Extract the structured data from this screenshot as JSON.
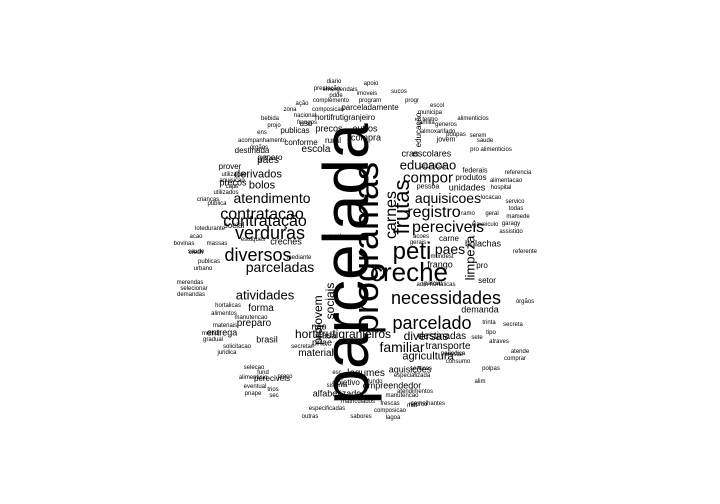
{
  "words": [
    {
      "text": "parcelada",
      "rot": -90
    },
    {
      "text": "programas",
      "rot": -90
    },
    {
      "text": "creche",
      "rot": 0
    },
    {
      "text": "peti",
      "rot": 0
    },
    {
      "text": "necessidades",
      "rot": 0
    },
    {
      "text": "parcelado",
      "rot": 0
    },
    {
      "text": "frutas",
      "rot": -90
    },
    {
      "text": "carnes",
      "rot": -90
    },
    {
      "text": "verduras",
      "rot": 0
    },
    {
      "text": "diversos",
      "rot": 0
    },
    {
      "text": "contratacao",
      "rot": 0
    },
    {
      "text": "contratação",
      "rot": 0
    },
    {
      "text": "parceladas",
      "rot": 0
    },
    {
      "text": "atendimento",
      "rot": 0
    },
    {
      "text": "registro",
      "rot": 0
    },
    {
      "text": "pereciveis",
      "rot": 0
    },
    {
      "text": "compor",
      "rot": 0
    },
    {
      "text": "aquisicoes",
      "rot": 0
    },
    {
      "text": "atividades",
      "rot": 0
    },
    {
      "text": "familiar",
      "rot": 0
    },
    {
      "text": "hortifrutigranjeiros",
      "rot": 0
    },
    {
      "text": "diversas",
      "rot": 0
    },
    {
      "text": "paes",
      "rot": 0
    },
    {
      "text": "educacao",
      "rot": 0
    },
    {
      "text": "limpeza",
      "rot": -90
    },
    {
      "text": "sociais",
      "rot": -90
    },
    {
      "text": "projovem",
      "rot": -90
    },
    {
      "text": "bolos",
      "rot": 0
    },
    {
      "text": "derivados",
      "rot": 0
    },
    {
      "text": "agricultura",
      "rot": 0
    },
    {
      "text": "destinadas",
      "rot": 0
    },
    {
      "text": "forma",
      "rot": 0
    },
    {
      "text": "preparo",
      "rot": 0
    },
    {
      "text": "material",
      "rot": 0
    },
    {
      "text": "transporte",
      "rot": 0
    },
    {
      "text": "pães",
      "rot": 0
    },
    {
      "text": "escola",
      "rot": 0
    },
    {
      "text": "escolares",
      "rot": 0
    },
    {
      "text": "cras",
      "rot": 0
    },
    {
      "text": "precos",
      "rot": 0
    },
    {
      "text": "preços",
      "rot": 0
    },
    {
      "text": "creches",
      "rot": 0
    },
    {
      "text": "casa",
      "rot": 0
    },
    {
      "text": "nao",
      "rot": 0
    },
    {
      "text": "pnae",
      "rot": 0
    },
    {
      "text": "legumes",
      "rot": 0
    },
    {
      "text": "alfabetizado",
      "rot": 0
    },
    {
      "text": "empreendedor",
      "rot": 0
    },
    {
      "text": "aquisições",
      "rot": 0
    },
    {
      "text": "demanda",
      "rot": 0
    },
    {
      "text": "unidades",
      "rot": 0
    },
    {
      "text": "frango",
      "rot": 0
    },
    {
      "text": "bolachas",
      "rot": 0
    },
    {
      "text": "carne",
      "rot": 0
    },
    {
      "text": "setor",
      "rot": 0
    },
    {
      "text": "pro",
      "rot": 0
    },
    {
      "text": "prover",
      "rot": 0
    },
    {
      "text": "social",
      "rot": 0
    },
    {
      "text": "entrega",
      "rot": 0
    },
    {
      "text": "brasil",
      "rot": 0
    },
    {
      "text": "destinada",
      "rot": 0
    },
    {
      "text": "conforme",
      "rot": 0
    },
    {
      "text": "genero",
      "rot": 0
    },
    {
      "text": "compra",
      "rot": 0
    },
    {
      "text": "outros",
      "rot": 0
    },
    {
      "text": "rural",
      "rot": 0
    },
    {
      "text": "publicas",
      "rot": 0
    },
    {
      "text": "uso",
      "rot": 0
    },
    {
      "text": "hortifrutigranjeiro",
      "rot": 0
    },
    {
      "text": "parceladamente",
      "rot": 0
    },
    {
      "text": "pereciveis",
      "rot": 0
    },
    {
      "text": "educação",
      "rot": -90
    },
    {
      "text": "jovem",
      "rot": 0
    },
    {
      "text": "produtos",
      "rot": 0
    },
    {
      "text": "federais",
      "rot": 0
    },
    {
      "text": "pessoa",
      "rot": 0
    },
    {
      "text": "hospital",
      "rot": 0
    },
    {
      "text": "locacao",
      "rot": 0
    },
    {
      "text": "geral",
      "rot": 0
    },
    {
      "text": "ejaveiculo",
      "rot": 0
    },
    {
      "text": "mundest",
      "rot": 0
    },
    {
      "text": "adm hortalicas",
      "rot": 0
    },
    {
      "text": "prestar",
      "rot": 0
    },
    {
      "text": "consumo",
      "rot": 0
    },
    {
      "text": "especializada",
      "rot": 0
    },
    {
      "text": "servicos",
      "rot": 0
    },
    {
      "text": "objetivo",
      "rot": 0
    },
    {
      "text": "sistema",
      "rot": 0
    },
    {
      "text": "fundo",
      "rot": 0
    },
    {
      "text": "manutencao",
      "rot": 0
    },
    {
      "text": "matriculados",
      "rot": 0
    },
    {
      "text": "frescas",
      "rot": 0
    },
    {
      "text": "estoques",
      "rot": 0
    },
    {
      "text": "lotedurante",
      "rot": 0
    },
    {
      "text": "acao",
      "rot": 0
    },
    {
      "text": "bovinas",
      "rot": 0
    },
    {
      "text": "merendas",
      "rot": 0
    },
    {
      "text": "selecionar",
      "rot": 0
    },
    {
      "text": "demandas",
      "rot": 0
    },
    {
      "text": "hortalicas",
      "rot": 0
    },
    {
      "text": "alimentos",
      "rot": 0
    },
    {
      "text": "materiais",
      "rot": 0
    },
    {
      "text": "manutencao",
      "rot": 0
    },
    {
      "text": "melhor",
      "rot": 0
    },
    {
      "text": "gradual",
      "rot": 0
    },
    {
      "text": "solicitacao",
      "rot": 0
    },
    {
      "text": "juridica",
      "rot": 0
    },
    {
      "text": "selecao",
      "rot": 0
    },
    {
      "text": "alimenticio",
      "rot": 0
    },
    {
      "text": "eventual",
      "rot": 0
    },
    {
      "text": "pnape",
      "rot": 0
    },
    {
      "text": "outras",
      "rot": 0
    },
    {
      "text": "sabores",
      "rot": 0
    },
    {
      "text": "lagoa",
      "rot": 0
    },
    {
      "text": "especificadas",
      "rot": 0
    },
    {
      "text": "composicao",
      "rot": 0
    },
    {
      "text": "reforco",
      "rot": 0
    },
    {
      "text": "semelhantes",
      "rot": 0
    },
    {
      "text": "diario",
      "rot": 0
    },
    {
      "text": "apoio",
      "rot": 0
    },
    {
      "text": "prestação",
      "rot": 0
    },
    {
      "text": "emergendais",
      "rot": 0
    },
    {
      "text": "pdde",
      "rot": 0
    },
    {
      "text": "imoveis",
      "rot": 0
    },
    {
      "text": "sucos",
      "rot": 0
    },
    {
      "text": "complemento",
      "rot": 0
    },
    {
      "text": "program",
      "rot": 0
    },
    {
      "text": "progr",
      "rot": 0
    },
    {
      "text": "ação",
      "rot": 0
    },
    {
      "text": "composicao",
      "rot": 0
    },
    {
      "text": "zona",
      "rot": 0
    },
    {
      "text": "nacional",
      "rot": 0
    },
    {
      "text": "escol",
      "rot": 0
    },
    {
      "text": "municipa",
      "rot": 0
    },
    {
      "text": "termo",
      "rot": 0
    },
    {
      "text": "alimenticios",
      "rot": 0
    },
    {
      "text": "familia",
      "rot": 0
    },
    {
      "text": "generos",
      "rot": 0
    },
    {
      "text": "almoxarifado",
      "rot": 0
    },
    {
      "text": "poupas",
      "rot": 0
    },
    {
      "text": "saude",
      "rot": 0
    },
    {
      "text": "pro alimenticios",
      "rot": 0
    },
    {
      "text": "serem",
      "rot": 0
    },
    {
      "text": "aquisição",
      "rot": 0
    },
    {
      "text": "referencia",
      "rot": 0
    },
    {
      "text": "alimentacao",
      "rot": 0
    },
    {
      "text": "servico",
      "rot": 0
    },
    {
      "text": "todas",
      "rot": 0
    },
    {
      "text": "mamede",
      "rot": 0
    },
    {
      "text": "garagy",
      "rot": 0
    },
    {
      "text": "assistido",
      "rot": 0
    },
    {
      "text": "ramo",
      "rot": 0
    },
    {
      "text": "referente",
      "rot": 0
    },
    {
      "text": "órgãos",
      "rot": 0
    },
    {
      "text": "secreta",
      "rot": 0
    },
    {
      "text": "trinta",
      "rot": 0
    },
    {
      "text": "tipo",
      "rot": 0
    },
    {
      "text": "atraves",
      "rot": 0
    },
    {
      "text": "atende",
      "rot": 0
    },
    {
      "text": "comprar",
      "rot": 0
    },
    {
      "text": "polpas",
      "rot": 0
    },
    {
      "text": "alim",
      "rot": 0
    },
    {
      "text": "sete",
      "rot": 0
    },
    {
      "text": "periodica",
      "rot": 0
    },
    {
      "text": "atendimentos",
      "rot": 0
    },
    {
      "text": "mat",
      "rot": 0
    },
    {
      "text": "frangos",
      "rot": 0
    },
    {
      "text": "ens",
      "rot": 0
    },
    {
      "text": "bebida",
      "rot": 0
    },
    {
      "text": "projo",
      "rot": 0
    },
    {
      "text": "órgãos",
      "rot": 0
    },
    {
      "text": "acompanhamento",
      "rot": 0
    },
    {
      "text": "utilizacao",
      "rot": 0
    },
    {
      "text": "aquisicao",
      "rot": 0
    },
    {
      "text": "caps",
      "rot": 0
    },
    {
      "text": "utilizados",
      "rot": 0
    },
    {
      "text": "crianças",
      "rot": 0
    },
    {
      "text": "publica",
      "rot": 0
    },
    {
      "text": "massas",
      "rot": 0
    },
    {
      "text": "saude",
      "rot": 0
    },
    {
      "text": "crech",
      "rot": 0
    },
    {
      "text": "publicas",
      "rot": 0
    },
    {
      "text": "urbano",
      "rot": 0
    },
    {
      "text": "secretar",
      "rot": 0
    },
    {
      "text": "fund",
      "rot": 0
    },
    {
      "text": "preco",
      "rot": 0
    },
    {
      "text": "parcial",
      "rot": 0
    },
    {
      "text": "acoes",
      "rot": 0
    },
    {
      "text": "gerais",
      "rot": 0
    },
    {
      "text": "rural",
      "rot": 0
    },
    {
      "text": "mediante",
      "rot": 0
    },
    {
      "text": "esc",
      "rot": 0
    },
    {
      "text": "sec",
      "rot": 0
    },
    {
      "text": "trios",
      "rot": 0
    },
    {
      "text": "proje",
      "rot": 0
    },
    {
      "text": "desta",
      "rot": 0
    },
    {
      "text": "dem",
      "rot": 0
    },
    {
      "text": "fogure",
      "rot": 0
    }
  ]
}
